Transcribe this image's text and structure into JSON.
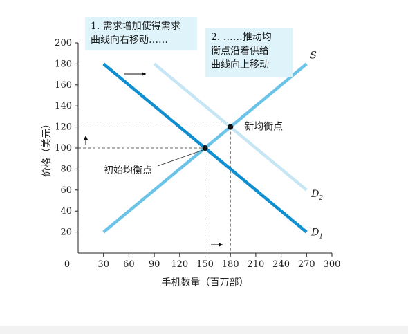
{
  "annotations": {
    "box1": "1. 需求增加使得需求\n曲线向右移动……",
    "box2": "2. ……推动均\n衡点沿着供给\n曲线向上移动"
  },
  "chart_data": {
    "type": "line",
    "xlabel": "手机数量（百万部）",
    "ylabel": "价格（美元）",
    "xlim": [
      0,
      300
    ],
    "ylim": [
      0,
      200
    ],
    "x_ticks": [
      "0",
      "30",
      "60",
      "90",
      "120",
      "150",
      "180",
      "210",
      "240",
      "270",
      "300"
    ],
    "y_ticks": [
      "20",
      "40",
      "60",
      "80",
      "100",
      "120",
      "140",
      "160",
      "180",
      "200"
    ],
    "series": [
      {
        "name": "S",
        "sub": "",
        "color": "#6cc3e8",
        "x": [
          30,
          270
        ],
        "y": [
          20,
          180
        ]
      },
      {
        "name": "D",
        "sub": "2",
        "color": "#c6e6f5",
        "x": [
          90,
          270
        ],
        "y": [
          180,
          60
        ]
      },
      {
        "name": "D",
        "sub": "1",
        "color": "#0f8fd0",
        "x": [
          30,
          270
        ],
        "y": [
          180,
          20
        ]
      }
    ],
    "points": [
      {
        "label": "初始均衡点",
        "x": 150,
        "y": 100
      },
      {
        "label": "新均衡点",
        "x": 180,
        "y": 120
      }
    ]
  }
}
